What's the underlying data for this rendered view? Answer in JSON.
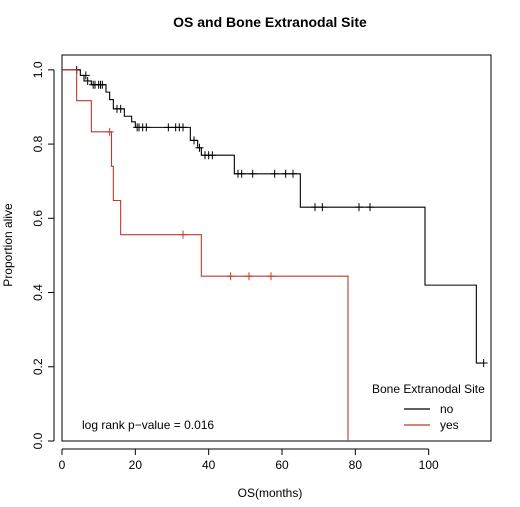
{
  "chart_data": {
    "type": "line",
    "title": "OS and Bone Extranodal Site",
    "xlabel": "OS(months)",
    "ylabel": "Proportion alive",
    "xlim": [
      0,
      117
    ],
    "ylim": [
      0,
      1.04
    ],
    "x_ticks": [
      0,
      20,
      40,
      60,
      80,
      100
    ],
    "x_tick_labels": [
      "0",
      "20",
      "40",
      "60",
      "80",
      "100"
    ],
    "y_ticks": [
      0.0,
      0.2,
      0.4,
      0.6,
      0.8,
      1.0
    ],
    "y_tick_labels": [
      "0.0",
      "0.2",
      "0.4",
      "0.6",
      "0.8",
      "1.0"
    ],
    "grid": false,
    "legend": {
      "title": "Bone Extranodal Site",
      "placement": "bottom-right",
      "entries": [
        {
          "label": "no",
          "color": "#000000"
        },
        {
          "label": "yes",
          "color": "#c0392b"
        }
      ]
    },
    "annotation": "log rank p−value = 0.016",
    "series": [
      {
        "name": "no",
        "color": "#000000",
        "steps": [
          [
            0,
            1.0
          ],
          [
            5,
            0.985
          ],
          [
            6,
            0.97
          ],
          [
            8,
            0.96
          ],
          [
            12,
            0.94
          ],
          [
            13,
            0.92
          ],
          [
            14,
            0.895
          ],
          [
            17,
            0.875
          ],
          [
            19,
            0.86
          ],
          [
            20,
            0.845
          ],
          [
            35,
            0.81
          ],
          [
            37,
            0.79
          ],
          [
            38,
            0.77
          ],
          [
            47,
            0.72
          ],
          [
            65,
            0.63
          ],
          [
            99,
            0.42
          ],
          [
            113,
            0.21
          ],
          [
            115,
            0.21
          ]
        ],
        "censored": [
          [
            4,
            1.0
          ],
          [
            6.5,
            0.985
          ],
          [
            7,
            0.97
          ],
          [
            8.5,
            0.96
          ],
          [
            9,
            0.96
          ],
          [
            10,
            0.96
          ],
          [
            10.5,
            0.96
          ],
          [
            11,
            0.96
          ],
          [
            15,
            0.895
          ],
          [
            16,
            0.895
          ],
          [
            20.5,
            0.845
          ],
          [
            21,
            0.845
          ],
          [
            22,
            0.845
          ],
          [
            23,
            0.845
          ],
          [
            29,
            0.845
          ],
          [
            31,
            0.845
          ],
          [
            32,
            0.845
          ],
          [
            33,
            0.845
          ],
          [
            36,
            0.81
          ],
          [
            37.5,
            0.79
          ],
          [
            39,
            0.77
          ],
          [
            40,
            0.77
          ],
          [
            41,
            0.77
          ],
          [
            48,
            0.72
          ],
          [
            49,
            0.72
          ],
          [
            52,
            0.72
          ],
          [
            58,
            0.72
          ],
          [
            61,
            0.72
          ],
          [
            63,
            0.72
          ],
          [
            69,
            0.63
          ],
          [
            71,
            0.63
          ],
          [
            81,
            0.63
          ],
          [
            84,
            0.63
          ],
          [
            115,
            0.21
          ]
        ]
      },
      {
        "name": "yes",
        "color": "#c0392b",
        "steps": [
          [
            0,
            1.0
          ],
          [
            4,
            0.917
          ],
          [
            8,
            0.833
          ],
          [
            13.5,
            0.74
          ],
          [
            14,
            0.648
          ],
          [
            16,
            0.556
          ],
          [
            38,
            0.444
          ],
          [
            78,
            0.0
          ]
        ],
        "censored": [
          [
            13,
            0.833
          ],
          [
            33,
            0.556
          ],
          [
            46,
            0.444
          ],
          [
            51,
            0.444
          ],
          [
            57,
            0.444
          ]
        ]
      }
    ]
  }
}
